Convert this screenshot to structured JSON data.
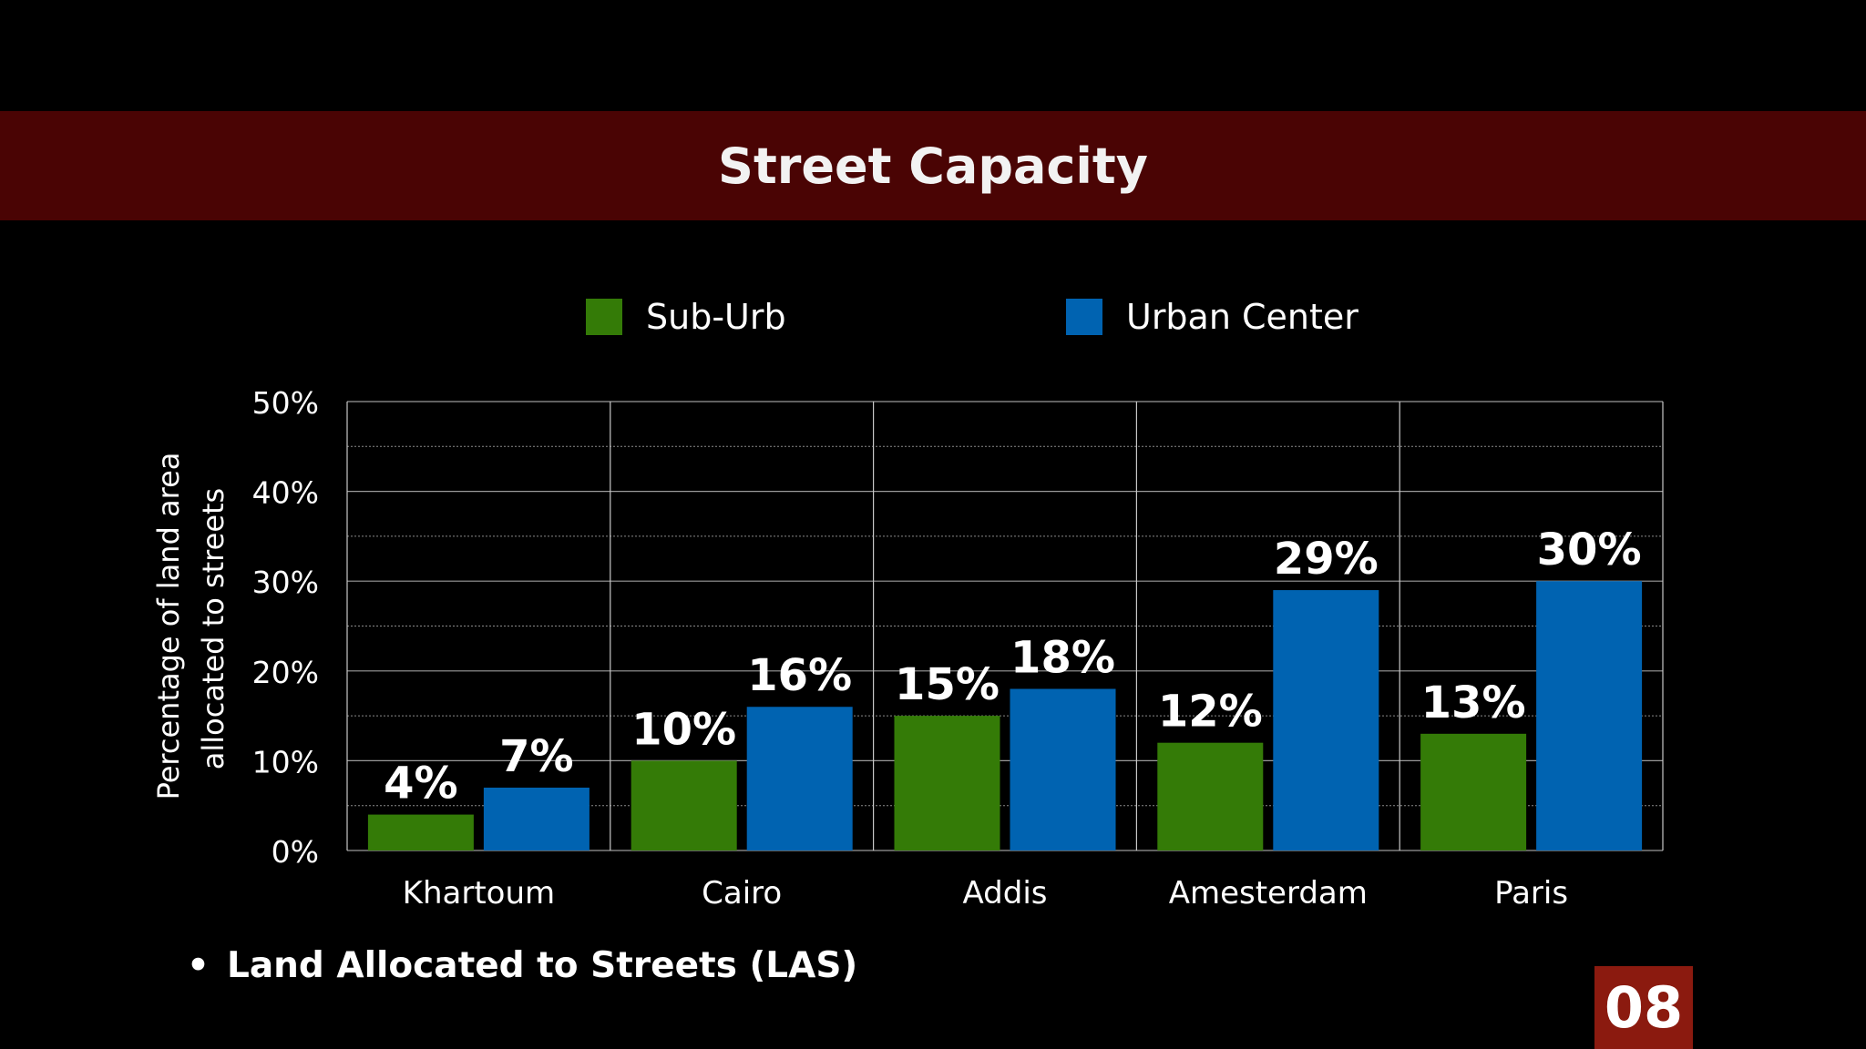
{
  "slide": {
    "title": "Street Capacity",
    "bullet": "Land Allocated to Streets (LAS)",
    "page_number": "08"
  },
  "colors": {
    "title_band": "#4a0404",
    "page_badge": "#8b1a0f",
    "sub_urb": "#347b07",
    "urban_center": "#0063b1"
  },
  "chart_data": {
    "type": "bar",
    "categories": [
      "Khartoum",
      "Cairo",
      "Addis",
      "Amesterdam",
      "Paris"
    ],
    "series": [
      {
        "name": "Sub-Urb",
        "color": "#347b07",
        "values": [
          4,
          10,
          15,
          12,
          13
        ],
        "labels": [
          "4%",
          "10%",
          "15%",
          "12%",
          "13%"
        ]
      },
      {
        "name": "Urban Center",
        "color": "#0063b1",
        "values": [
          7,
          16,
          18,
          29,
          30
        ],
        "labels": [
          "7%",
          "16%",
          "18%",
          "29%",
          "30%"
        ]
      }
    ],
    "ylabel_lines": [
      "Percentage of land area",
      "allocated to streets"
    ],
    "ylim": [
      0,
      50
    ],
    "yticks": [
      0,
      10,
      20,
      30,
      40,
      50
    ],
    "ytick_labels": [
      "0%",
      "10%",
      "20%",
      "30%",
      "40%",
      "50%"
    ],
    "legend_position": "top",
    "grid": true
  }
}
